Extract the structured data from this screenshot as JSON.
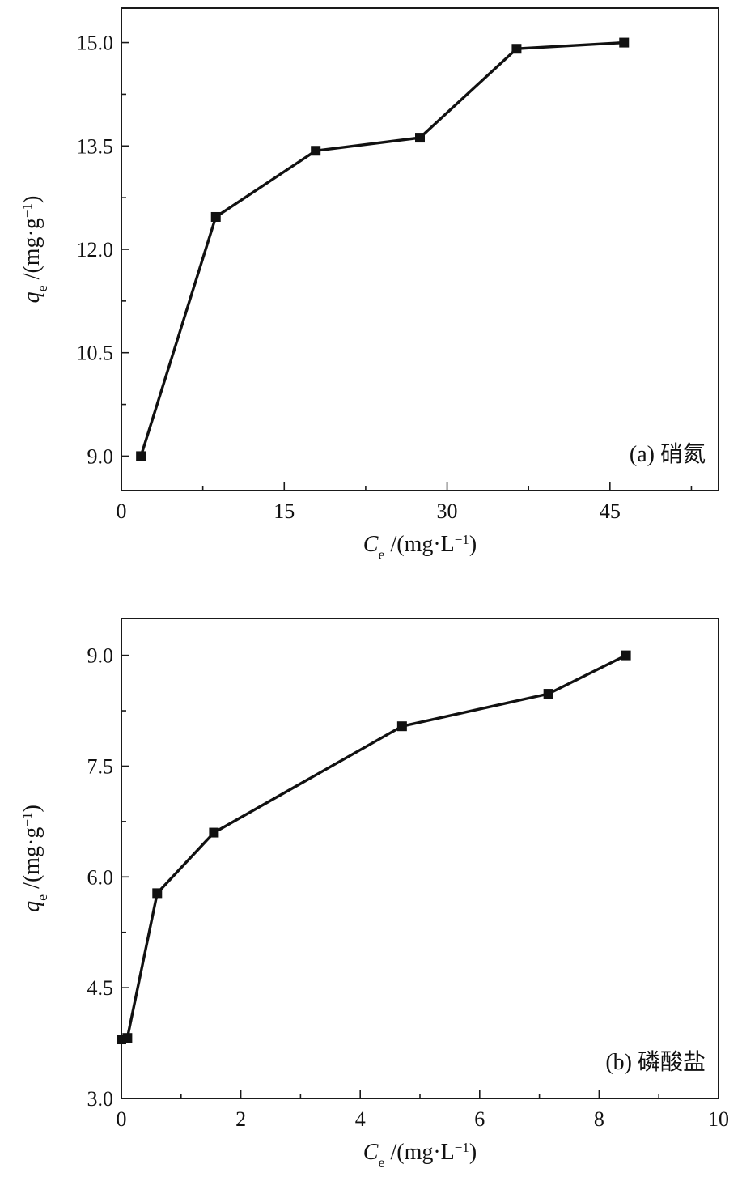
{
  "chart_data": [
    {
      "type": "line",
      "panel_label": "(a) 硝氮",
      "xlabel": {
        "symbol": "C",
        "subscript": "e",
        "unit": "/(mg·L",
        "sup": "−1",
        "close": ")"
      },
      "ylabel": {
        "symbol": "q",
        "subscript": "e",
        "unit": "/(mg·g",
        "sup": "−1",
        "close": ")"
      },
      "xlim": [
        0,
        55
      ],
      "ylim": [
        8.5,
        15.5
      ],
      "x_ticks": [
        0,
        15,
        30,
        45
      ],
      "x_tick_labels": [
        "0",
        "15",
        "30",
        "45"
      ],
      "x_minor_ticks": [
        7.5,
        22.5,
        37.5,
        52.5
      ],
      "y_ticks": [
        9.0,
        10.5,
        12.0,
        13.5,
        15.0
      ],
      "y_tick_labels": [
        "9.0",
        "10.5",
        "12.0",
        "13.5",
        "15.0"
      ],
      "y_minor_ticks": [
        9.75,
        11.25,
        12.75,
        14.25
      ],
      "legend": "bottom-right",
      "series": [
        {
          "marker": "square",
          "color": "#111111",
          "x": [
            1.8,
            8.7,
            17.9,
            27.5,
            36.4,
            46.3
          ],
          "y": [
            9.0,
            12.47,
            13.43,
            13.62,
            14.91,
            15.0
          ]
        }
      ]
    },
    {
      "type": "line",
      "panel_label": "(b) 磷酸盐",
      "xlabel": {
        "symbol": "C",
        "subscript": "e",
        "unit": "/(mg·L",
        "sup": "−1",
        "close": ")"
      },
      "ylabel": {
        "symbol": "q",
        "subscript": "e",
        "unit": "/(mg·g",
        "sup": "−1",
        "close": ")"
      },
      "xlim": [
        0,
        10
      ],
      "ylim": [
        3.0,
        9.5
      ],
      "x_ticks": [
        0,
        2,
        4,
        6,
        8,
        10
      ],
      "x_tick_labels": [
        "0",
        "2",
        "4",
        "6",
        "8",
        "10"
      ],
      "x_minor_ticks": [
        1,
        3,
        5,
        7,
        9
      ],
      "y_ticks": [
        3.0,
        4.5,
        6.0,
        7.5,
        9.0
      ],
      "y_tick_labels": [
        "3.0",
        "4.5",
        "6.0",
        "7.5",
        "9.0"
      ],
      "y_minor_ticks": [
        3.75,
        5.25,
        6.75,
        8.25
      ],
      "legend": "bottom-right",
      "series": [
        {
          "marker": "square",
          "color": "#111111",
          "x": [
            0.0,
            0.1,
            0.6,
            1.55,
            4.7,
            7.15,
            8.45
          ],
          "y": [
            3.8,
            3.82,
            5.78,
            6.6,
            8.04,
            8.48,
            9.0
          ]
        }
      ]
    }
  ]
}
